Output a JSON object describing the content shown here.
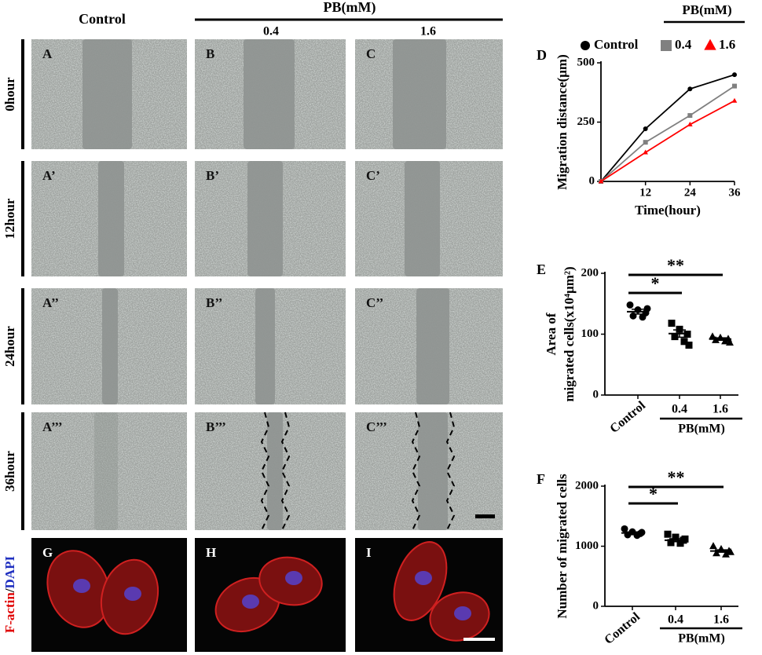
{
  "header": {
    "control": "Control",
    "group": "PB(mM)",
    "doses": [
      "0.4",
      "1.6"
    ]
  },
  "rows": [
    "0hour",
    "12hour",
    "24hour",
    "36hour"
  ],
  "panels": [
    [
      "A",
      "B",
      "C"
    ],
    [
      "A’",
      "B’",
      "C’"
    ],
    [
      "A’’",
      "B’’",
      "C’’"
    ],
    [
      "A’’’",
      "B’’’",
      "C’’’"
    ]
  ],
  "fluorescence": {
    "label_red": "F-actin",
    "label_sep": "/",
    "label_blue": "DAPI",
    "panels": [
      "G",
      "H",
      "I"
    ]
  },
  "charts": [
    {
      "type": "line",
      "letter": "D",
      "legend_group": "PB(mM)",
      "ylabel": [
        "Migration distance(μm)"
      ],
      "xlabel": "Time(hour)",
      "x": [
        0,
        12,
        24,
        36
      ],
      "xlim": [
        0,
        36
      ],
      "xticks": [
        12,
        24,
        36
      ],
      "ylim": [
        0,
        500
      ],
      "yticks": [
        0,
        250,
        500
      ],
      "series": [
        {
          "name": "Control",
          "color": "#000000",
          "marker": "circle",
          "values": [
            0,
            222,
            390,
            450
          ]
        },
        {
          "name": "0.4",
          "color": "#808080",
          "marker": "square",
          "values": [
            0,
            165,
            278,
            402
          ]
        },
        {
          "name": "1.6",
          "color": "#ff0000",
          "marker": "triangle",
          "values": [
            0,
            122,
            240,
            340
          ]
        }
      ]
    },
    {
      "type": "dot_plot",
      "letter": "E",
      "group_label": "PB(mM)",
      "ylabel": [
        "Area of",
        "migrated cells(x10⁴μm²)"
      ],
      "ylim": [
        0,
        200
      ],
      "yticks": [
        0,
        100,
        200
      ],
      "significance": [
        "*",
        "**"
      ],
      "series": [
        {
          "name": "Control",
          "marker": "circle",
          "values": [
            148,
            140,
            135,
            130,
            128,
            142
          ],
          "mean": 137,
          "sem": 4
        },
        {
          "name": "0.4",
          "marker": "square",
          "values": [
            118,
            108,
            100,
            96,
            88,
            82
          ],
          "mean": 101,
          "sem": 6
        },
        {
          "name": "1.6",
          "marker": "triangle",
          "values": [
            96,
            94,
            92,
            90,
            88,
            86
          ],
          "mean": 92,
          "sem": 2
        }
      ]
    },
    {
      "type": "dot_plot",
      "letter": "F",
      "group_label": "PB(mM)",
      "ylabel": [
        "Number of migrated  cells"
      ],
      "ylim": [
        0,
        2000
      ],
      "yticks": [
        0,
        1000,
        2000
      ],
      "significance": [
        "*",
        "**"
      ],
      "series": [
        {
          "name": "Control",
          "marker": "circle",
          "values": [
            1290,
            1240,
            1210,
            1190,
            1180,
            1230
          ],
          "mean": 1220,
          "sem": 18
        },
        {
          "name": "0.4",
          "marker": "square",
          "values": [
            1200,
            1150,
            1100,
            1060,
            1050,
            1120
          ],
          "mean": 1100,
          "sem": 25
        },
        {
          "name": "1.6",
          "marker": "triangle",
          "values": [
            1000,
            950,
            920,
            880,
            860,
            900
          ],
          "mean": 920,
          "sem": 20
        }
      ]
    }
  ]
}
